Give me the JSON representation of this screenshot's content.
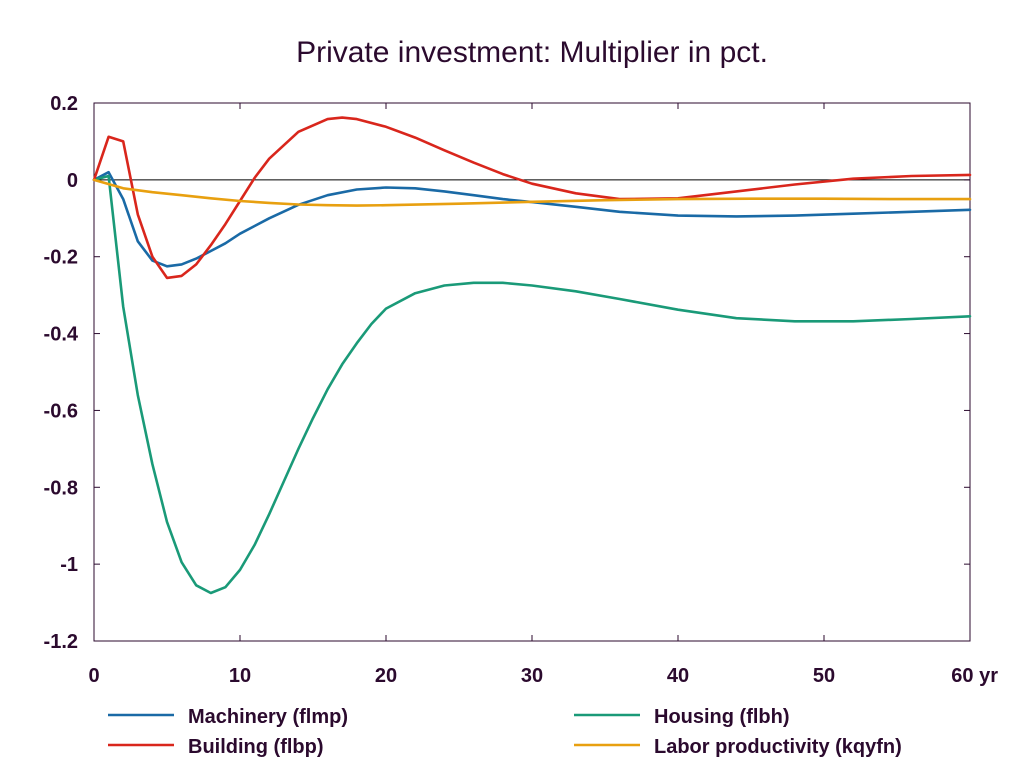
{
  "chart_data": {
    "type": "line",
    "title": "Private investment: Multiplier in pct.",
    "xlabel": "",
    "ylabel": "",
    "x_unit_label": "yr",
    "xlim": [
      0,
      60
    ],
    "ylim": [
      -1.2,
      0.2
    ],
    "xticks": [
      0,
      10,
      20,
      30,
      40,
      50,
      60
    ],
    "yticks": [
      0.2,
      0,
      -0.2,
      -0.4,
      -0.6,
      -0.8,
      -1,
      -1.2
    ],
    "xtick_labels": [
      "0",
      "10",
      "20",
      "30",
      "40",
      "50",
      "60 yr"
    ],
    "ytick_labels": [
      "0.2",
      "0",
      "-0.2",
      "-0.4",
      "-0.6",
      "-0.8",
      "-1",
      "-1.2"
    ],
    "grid": false,
    "zero_line": true,
    "legend_position": "bottom",
    "series": [
      {
        "name": "Machinery (flmp)",
        "color": "#1a6aa6",
        "x": [
          0,
          1,
          2,
          3,
          4,
          5,
          6,
          7,
          8,
          9,
          10,
          12,
          14,
          16,
          18,
          20,
          22,
          24,
          26,
          28,
          30,
          33,
          36,
          40,
          44,
          48,
          52,
          56,
          60
        ],
        "y": [
          0,
          0.02,
          -0.05,
          -0.16,
          -0.21,
          -0.225,
          -0.22,
          -0.205,
          -0.185,
          -0.165,
          -0.14,
          -0.1,
          -0.065,
          -0.04,
          -0.025,
          -0.02,
          -0.022,
          -0.03,
          -0.04,
          -0.05,
          -0.058,
          -0.07,
          -0.083,
          -0.093,
          -0.095,
          -0.093,
          -0.088,
          -0.083,
          -0.078
        ]
      },
      {
        "name": "Housing (flbh)",
        "color": "#1a9a78",
        "x": [
          0,
          1,
          2,
          3,
          4,
          5,
          6,
          7,
          8,
          9,
          10,
          11,
          12,
          13,
          14,
          15,
          16,
          17,
          18,
          19,
          20,
          22,
          24,
          26,
          28,
          30,
          33,
          36,
          40,
          44,
          48,
          52,
          56,
          60
        ],
        "y": [
          0,
          0.01,
          -0.33,
          -0.56,
          -0.74,
          -0.89,
          -0.995,
          -1.055,
          -1.075,
          -1.06,
          -1.015,
          -0.95,
          -0.87,
          -0.785,
          -0.7,
          -0.62,
          -0.545,
          -0.48,
          -0.425,
          -0.375,
          -0.335,
          -0.295,
          -0.275,
          -0.268,
          -0.268,
          -0.275,
          -0.29,
          -0.31,
          -0.338,
          -0.36,
          -0.368,
          -0.368,
          -0.362,
          -0.355
        ]
      },
      {
        "name": "Building (flbp)",
        "color": "#d9261c",
        "x": [
          0,
          1,
          2,
          3,
          4,
          5,
          6,
          7,
          8,
          9,
          10,
          11,
          12,
          14,
          16,
          17,
          18,
          20,
          22,
          24,
          26,
          28,
          30,
          33,
          36,
          40,
          44,
          48,
          52,
          56,
          60
        ],
        "y": [
          0,
          0.112,
          0.1,
          -0.09,
          -0.2,
          -0.255,
          -0.25,
          -0.22,
          -0.17,
          -0.115,
          -0.055,
          0.005,
          0.055,
          0.125,
          0.158,
          0.162,
          0.158,
          0.138,
          0.11,
          0.077,
          0.045,
          0.015,
          -0.01,
          -0.035,
          -0.05,
          -0.048,
          -0.03,
          -0.012,
          0.003,
          0.01,
          0.013
        ]
      },
      {
        "name": "Labor productivity (kqyfn)",
        "color": "#e8a010",
        "x": [
          0,
          2,
          4,
          6,
          8,
          10,
          12,
          14,
          16,
          18,
          20,
          25,
          30,
          35,
          40,
          45,
          50,
          55,
          60
        ],
        "y": [
          0,
          -0.022,
          -0.032,
          -0.04,
          -0.048,
          -0.055,
          -0.06,
          -0.064,
          -0.066,
          -0.067,
          -0.066,
          -0.062,
          -0.057,
          -0.053,
          -0.05,
          -0.049,
          -0.049,
          -0.05,
          -0.05
        ]
      }
    ]
  }
}
